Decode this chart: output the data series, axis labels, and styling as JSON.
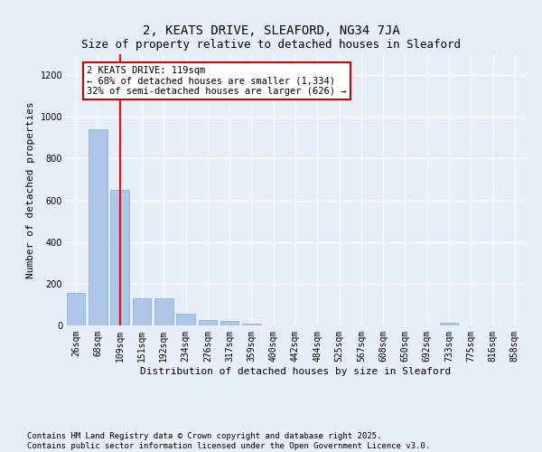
{
  "title": "2, KEATS DRIVE, SLEAFORD, NG34 7JA",
  "subtitle": "Size of property relative to detached houses in Sleaford",
  "xlabel": "Distribution of detached houses by size in Sleaford",
  "ylabel": "Number of detached properties",
  "categories": [
    "26sqm",
    "68sqm",
    "109sqm",
    "151sqm",
    "192sqm",
    "234sqm",
    "276sqm",
    "317sqm",
    "359sqm",
    "400sqm",
    "442sqm",
    "484sqm",
    "525sqm",
    "567sqm",
    "608sqm",
    "650sqm",
    "692sqm",
    "733sqm",
    "775sqm",
    "816sqm",
    "858sqm"
  ],
  "values": [
    155,
    940,
    650,
    130,
    130,
    55,
    25,
    20,
    10,
    0,
    0,
    0,
    0,
    0,
    0,
    0,
    0,
    12,
    0,
    0,
    0
  ],
  "bar_color": "#aec6e8",
  "bar_edge_color": "#7bafd4",
  "red_line_x": 2,
  "annotation_title": "2 KEATS DRIVE: 119sqm",
  "annotation_line1": "← 68% of detached houses are smaller (1,334)",
  "annotation_line2": "32% of semi-detached houses are larger (626) →",
  "annotation_box_color": "#ffffff",
  "annotation_box_edge_color": "#cc0000",
  "ylim": [
    0,
    1300
  ],
  "yticks": [
    0,
    200,
    400,
    600,
    800,
    1000,
    1200
  ],
  "footnote1": "Contains HM Land Registry data © Crown copyright and database right 2025.",
  "footnote2": "Contains public sector information licensed under the Open Government Licence v3.0.",
  "background_color": "#e8eef7",
  "plot_bg_color": "#e8eef7",
  "grid_color": "#ffffff",
  "title_fontsize": 10,
  "axis_label_fontsize": 8,
  "tick_fontsize": 7,
  "annotation_fontsize": 7.5,
  "footnote_fontsize": 6.5
}
